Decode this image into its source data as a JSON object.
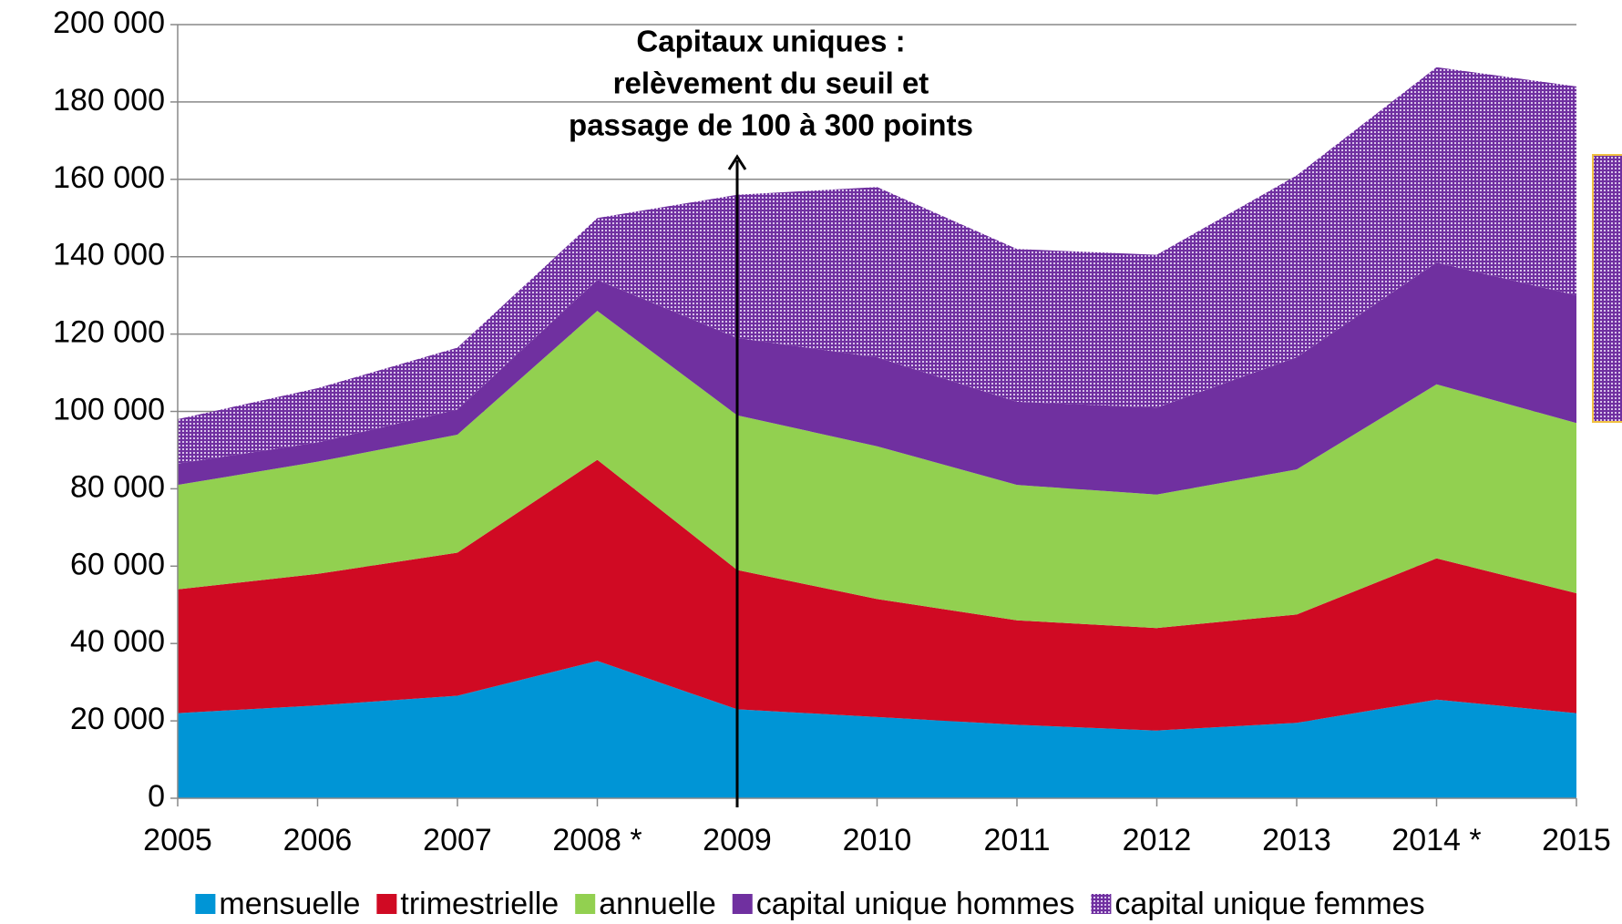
{
  "chart_data": {
    "type": "stacked_area",
    "annotation": [
      "Capitaux uniques :",
      "relèvement du seuil et",
      "passage de 100 à 300 points"
    ],
    "annotation_category": "2009",
    "categories": [
      "2005",
      "2006",
      "2007",
      "2008 *",
      "2009",
      "2010",
      "2011",
      "2012",
      "2013",
      "2014 *",
      "2015"
    ],
    "series": [
      {
        "name": "mensuelle",
        "color": "#0095d6",
        "values": [
          22000,
          24000,
          26500,
          35500,
          23000,
          21000,
          19000,
          17500,
          19500,
          25500,
          22000
        ]
      },
      {
        "name": "trimestrielle",
        "color": "#d00a23",
        "values": [
          32000,
          34000,
          37000,
          52000,
          36000,
          30500,
          27000,
          26500,
          28000,
          36500,
          31000
        ]
      },
      {
        "name": "annuelle",
        "color": "#92d050",
        "values": [
          27000,
          29000,
          30500,
          38500,
          40000,
          39500,
          35000,
          34500,
          37500,
          45000,
          44000
        ]
      },
      {
        "name": "capital unique hommes",
        "color": "#7030a0",
        "values": [
          5500,
          5000,
          6500,
          8000,
          20000,
          23000,
          21500,
          22500,
          29000,
          31500,
          33000
        ]
      },
      {
        "name": "capital unique femmes",
        "color": "#7030a0",
        "pattern": "dots",
        "values": [
          11500,
          14000,
          16000,
          16000,
          37000,
          44000,
          39500,
          39500,
          47000,
          50500,
          54000
        ]
      }
    ],
    "ylim": [
      0,
      200000
    ],
    "yticks": [
      0,
      {
        "value": 20000,
        "label": "20 000"
      },
      {
        "value": 40000,
        "label": "40 000"
      },
      {
        "value": 60000,
        "label": "60 000"
      },
      {
        "value": 80000,
        "label": "80 000"
      },
      {
        "value": 100000,
        "label": "100 000"
      },
      {
        "value": 120000,
        "label": "120 000"
      },
      {
        "value": 140000,
        "label": "140 000"
      },
      {
        "value": 160000,
        "label": "160 000"
      },
      {
        "value": 180000,
        "label": "180 000"
      },
      {
        "value": 200000,
        "label": "200 000"
      }
    ],
    "grid": true,
    "legend": "bottom"
  }
}
